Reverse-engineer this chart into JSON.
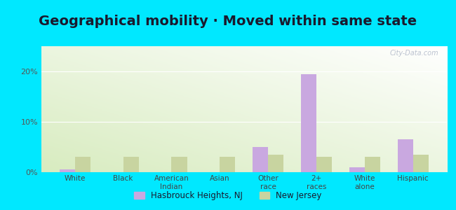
{
  "title": "Geographical mobility · Moved within same state",
  "categories": [
    "White",
    "Black",
    "American\nIndian",
    "Asian",
    "Other\nrace",
    "2+\nraces",
    "White\nalone",
    "Hispanic"
  ],
  "hasbrouck_values": [
    0.5,
    0.0,
    0.0,
    0.0,
    5.0,
    19.5,
    1.0,
    6.5
  ],
  "nj_values": [
    3.0,
    3.0,
    3.0,
    3.0,
    3.5,
    3.0,
    3.0,
    3.5
  ],
  "hasbrouck_color": "#c9a8e0",
  "nj_color": "#c8d4a0",
  "bg_outer": "#00e8ff",
  "ylim": [
    0,
    25
  ],
  "yticks": [
    0,
    10,
    20
  ],
  "ytick_labels": [
    "0%",
    "10%",
    "20%"
  ],
  "legend_hasbrouck": "Hasbrouck Heights, NJ",
  "legend_nj": "New Jersey",
  "title_fontsize": 14,
  "bar_width": 0.32
}
